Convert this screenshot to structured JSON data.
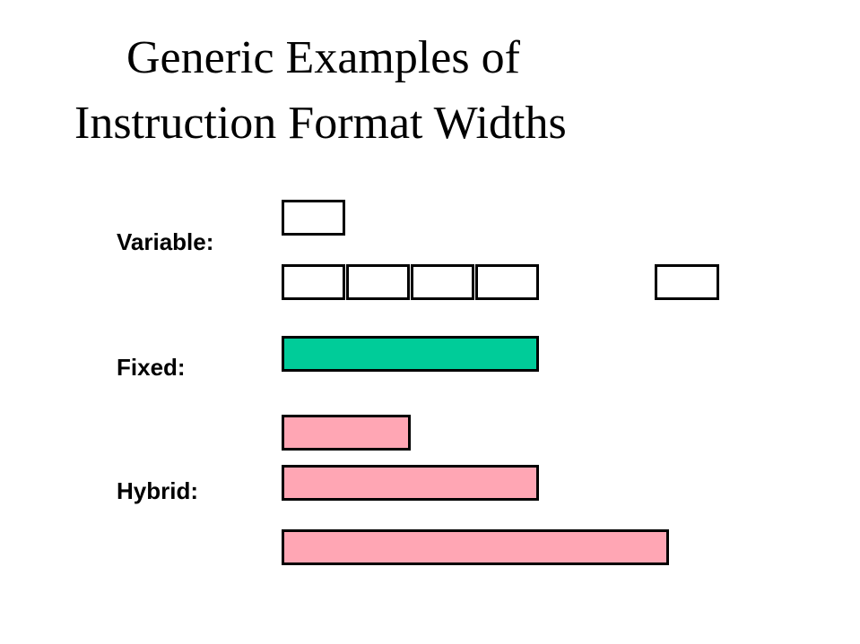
{
  "title": {
    "line1": "Generic Examples of",
    "line2": "Instruction Format Widths"
  },
  "rows": {
    "variable_label": "Variable:",
    "fixed_label": "Fixed:",
    "hybrid_label": "Hybrid:"
  },
  "colors": {
    "variable_fill": "#ffffff",
    "fixed_fill": "#00cc99",
    "hybrid_fill": "#ffa6b4",
    "outline": "#000000"
  }
}
